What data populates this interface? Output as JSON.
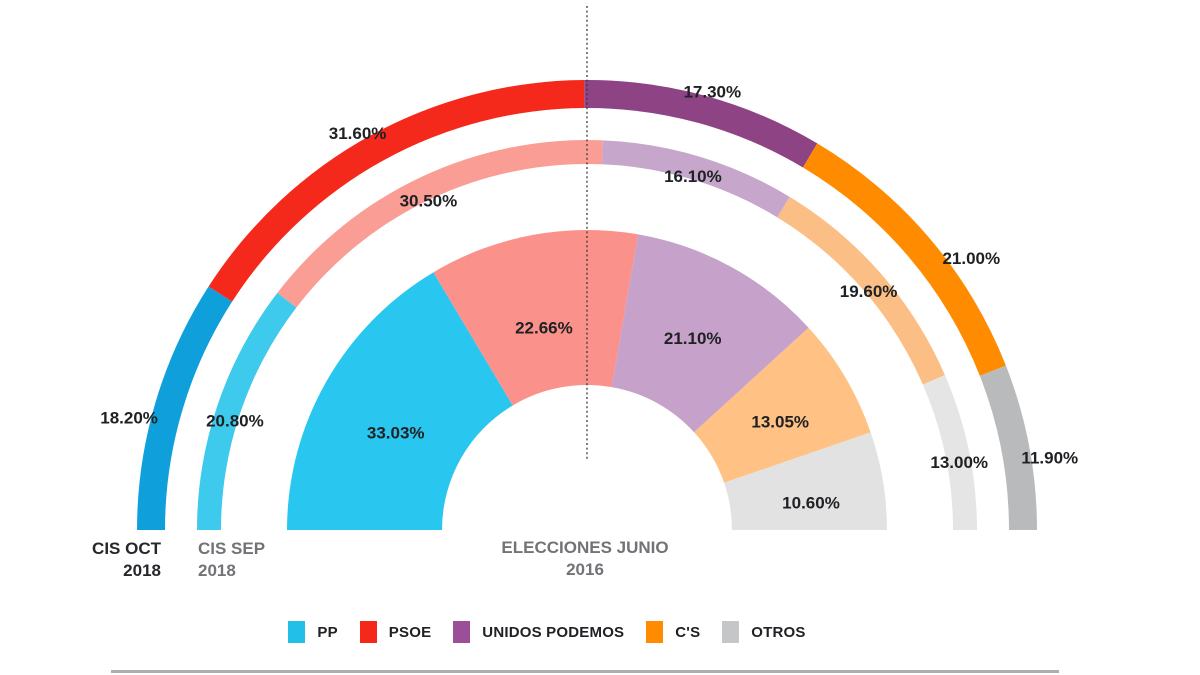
{
  "chart_data": {
    "type": "pie",
    "variant": "semicircle-multi-ring-donut",
    "unit": "%",
    "legend_position": "bottom",
    "value_label_color": "#202124",
    "center_line": {
      "style": "dotted",
      "color": "#3b3b3b"
    },
    "parties": [
      {
        "name": "PP",
        "legend_color": "#22C0E8"
      },
      {
        "name": "PSOE",
        "legend_color": "#F5291B"
      },
      {
        "name": "UNIDOS PODEMOS",
        "legend_color": "#9B4F96"
      },
      {
        "name": "C'S",
        "legend_color": "#FF8C00"
      },
      {
        "name": "OTROS",
        "legend_color": "#C5C6C8"
      }
    ],
    "rings": [
      {
        "name": "CIS OCT 2018",
        "label_lines": [
          "CIS OCT",
          "2018"
        ],
        "label_color": "#26272B",
        "position": "outer",
        "segments": [
          {
            "party": "PP",
            "value": 18.2,
            "display": "18.20%",
            "color": "#0FA0DC"
          },
          {
            "party": "PSOE",
            "value": 31.6,
            "display": "31.60%",
            "color": "#F5291B"
          },
          {
            "party": "UNIDOS PODEMOS",
            "value": 17.3,
            "display": "17.30%",
            "color": "#8D4384"
          },
          {
            "party": "C'S",
            "value": 21.0,
            "display": "21.00%",
            "color": "#FF8C00"
          },
          {
            "party": "OTROS",
            "value": 11.9,
            "display": "11.90%",
            "color": "#B9BABC"
          }
        ]
      },
      {
        "name": "CIS SEP 2018",
        "label_lines": [
          "CIS SEP",
          "2018"
        ],
        "label_color": "#717377",
        "position": "middle",
        "segments": [
          {
            "party": "PP",
            "value": 20.8,
            "display": "20.80%",
            "color": "#3DCAEC"
          },
          {
            "party": "PSOE",
            "value": 30.5,
            "display": "30.50%",
            "color": "#F99D95"
          },
          {
            "party": "UNIDOS PODEMOS",
            "value": 16.1,
            "display": "16.10%",
            "color": "#C7A6CB"
          },
          {
            "party": "C'S",
            "value": 19.6,
            "display": "19.60%",
            "color": "#FBBE85"
          },
          {
            "party": "OTROS",
            "value": 13.0,
            "display": "13.00%",
            "color": "#E5E5E6"
          }
        ]
      },
      {
        "name": "ELECCIONES JUNIO 2016",
        "label_lines": [
          "ELECCIONES JUNIO",
          "2016"
        ],
        "label_color": "#717377",
        "position": "inner",
        "segments": [
          {
            "party": "PP",
            "value": 33.03,
            "display": "33.03%",
            "color": "#29C6EF"
          },
          {
            "party": "PSOE",
            "value": 22.66,
            "display": "22.66%",
            "color": "#FA918A"
          },
          {
            "party": "UNIDOS PODEMOS",
            "value": 21.1,
            "display": "21.10%",
            "color": "#C6A2CA"
          },
          {
            "party": "C'S",
            "value": 13.05,
            "display": "13.05%",
            "color": "#FFC184"
          },
          {
            "party": "OTROS",
            "value": 10.6,
            "display": "10.60%",
            "color": "#E2E2E3"
          }
        ]
      }
    ]
  }
}
